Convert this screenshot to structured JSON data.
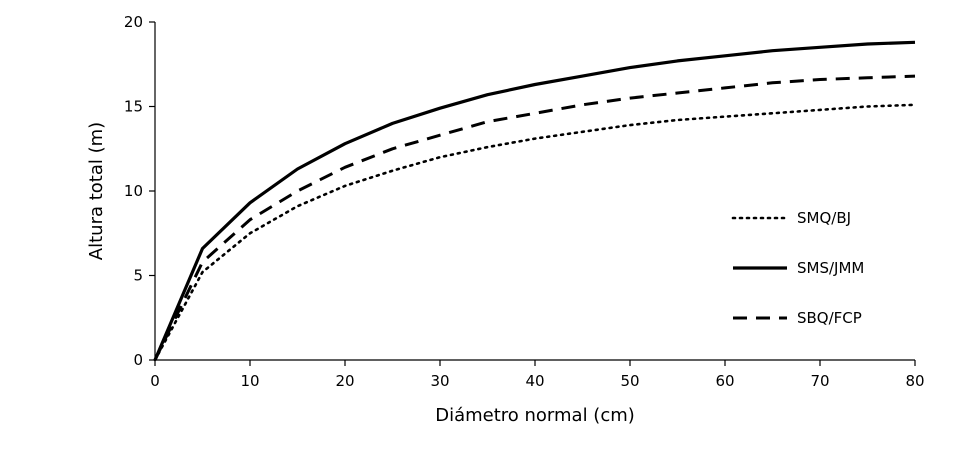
{
  "chart_data": {
    "type": "line",
    "title": "",
    "xlabel": "Diámetro normal (cm)",
    "ylabel": "Altura total (m)",
    "xlim": [
      0,
      80
    ],
    "ylim": [
      0,
      20
    ],
    "x_ticks": [
      0,
      10,
      20,
      30,
      40,
      50,
      60,
      70,
      80
    ],
    "y_ticks": [
      0,
      5,
      10,
      15,
      20
    ],
    "grid": false,
    "legend_position": "right",
    "x": [
      0,
      5,
      10,
      15,
      20,
      25,
      30,
      35,
      40,
      45,
      50,
      55,
      60,
      65,
      70,
      75,
      80
    ],
    "series": [
      {
        "name": "SMQ/BJ",
        "style": "dotted",
        "values": [
          0,
          5.2,
          7.5,
          9.1,
          10.3,
          11.2,
          12.0,
          12.6,
          13.1,
          13.5,
          13.9,
          14.2,
          14.4,
          14.6,
          14.8,
          15.0,
          15.1
        ]
      },
      {
        "name": "SMS/JMM",
        "style": "solid",
        "values": [
          0,
          6.6,
          9.3,
          11.3,
          12.8,
          14.0,
          14.9,
          15.7,
          16.3,
          16.8,
          17.3,
          17.7,
          18.0,
          18.3,
          18.5,
          18.7,
          18.8
        ]
      },
      {
        "name": "SBQ/FCP",
        "style": "dashed",
        "values": [
          0,
          5.8,
          8.3,
          10.0,
          11.4,
          12.5,
          13.3,
          14.1,
          14.6,
          15.1,
          15.5,
          15.8,
          16.1,
          16.4,
          16.6,
          16.7,
          16.8
        ]
      }
    ]
  }
}
